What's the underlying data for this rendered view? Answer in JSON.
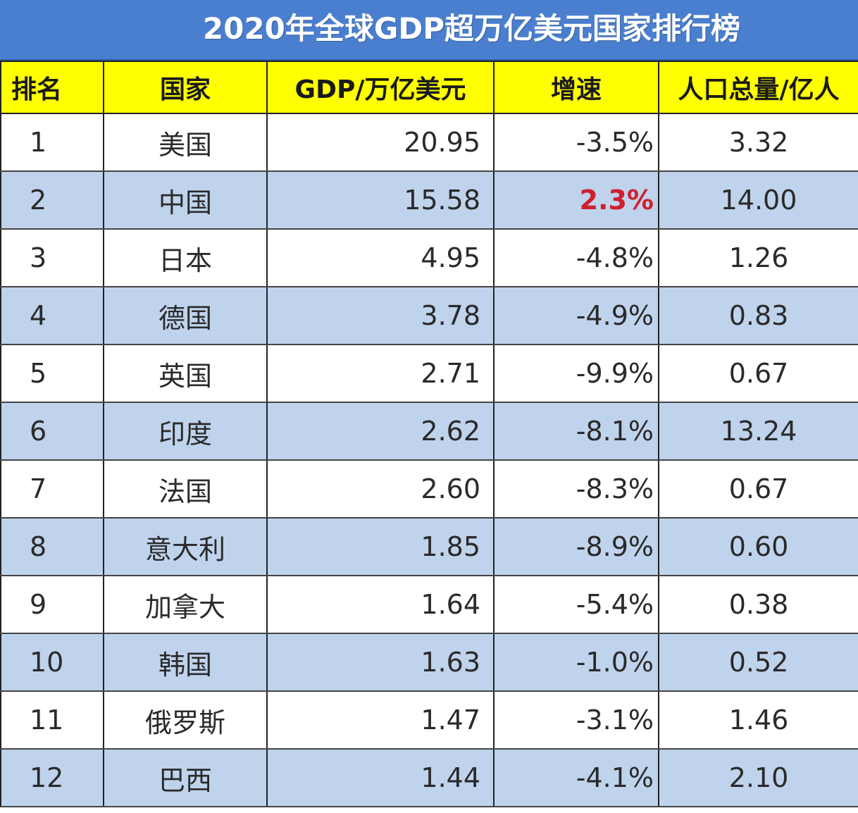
{
  "title": "2020年全球GDP超万亿美元国家排行榜",
  "headers": {
    "rank": "排名",
    "country": "国家",
    "gdp": "GDP/万亿美元",
    "growth": "增速",
    "population": "人口总量/亿人"
  },
  "colors": {
    "title_bg": "#4a7fd0",
    "header_bg": "#ffff00",
    "row_alt_bg": "#bfd3ec",
    "highlight": "#d01f2f"
  },
  "chart_data": {
    "type": "table",
    "title": "2020年全球GDP超万亿美元国家排行榜",
    "columns": [
      "排名",
      "国家",
      "GDP/万亿美元",
      "增速",
      "人口总量/亿人"
    ],
    "rows": [
      {
        "rank": "1",
        "country": "美国",
        "gdp": "20.95",
        "growth": "-3.5%",
        "population": "3.32",
        "highlight": false
      },
      {
        "rank": "2",
        "country": "中国",
        "gdp": "15.58",
        "growth": "2.3%",
        "population": "14.00",
        "highlight": true
      },
      {
        "rank": "3",
        "country": "日本",
        "gdp": "4.95",
        "growth": "-4.8%",
        "population": "1.26",
        "highlight": false
      },
      {
        "rank": "4",
        "country": "德国",
        "gdp": "3.78",
        "growth": "-4.9%",
        "population": "0.83",
        "highlight": false
      },
      {
        "rank": "5",
        "country": "英国",
        "gdp": "2.71",
        "growth": "-9.9%",
        "population": "0.67",
        "highlight": false
      },
      {
        "rank": "6",
        "country": "印度",
        "gdp": "2.62",
        "growth": "-8.1%",
        "population": "13.24",
        "highlight": false
      },
      {
        "rank": "7",
        "country": "法国",
        "gdp": "2.60",
        "growth": "-8.3%",
        "population": "0.67",
        "highlight": false
      },
      {
        "rank": "8",
        "country": "意大利",
        "gdp": "1.85",
        "growth": "-8.9%",
        "population": "0.60",
        "highlight": false
      },
      {
        "rank": "9",
        "country": "加拿大",
        "gdp": "1.64",
        "growth": "-5.4%",
        "population": "0.38",
        "highlight": false
      },
      {
        "rank": "10",
        "country": "韩国",
        "gdp": "1.63",
        "growth": "-1.0%",
        "population": "0.52",
        "highlight": false
      },
      {
        "rank": "11",
        "country": "俄罗斯",
        "gdp": "1.47",
        "growth": "-3.1%",
        "population": "1.46",
        "highlight": false
      },
      {
        "rank": "12",
        "country": "巴西",
        "gdp": "1.44",
        "growth": "-4.1%",
        "population": "2.10",
        "highlight": false
      }
    ]
  }
}
